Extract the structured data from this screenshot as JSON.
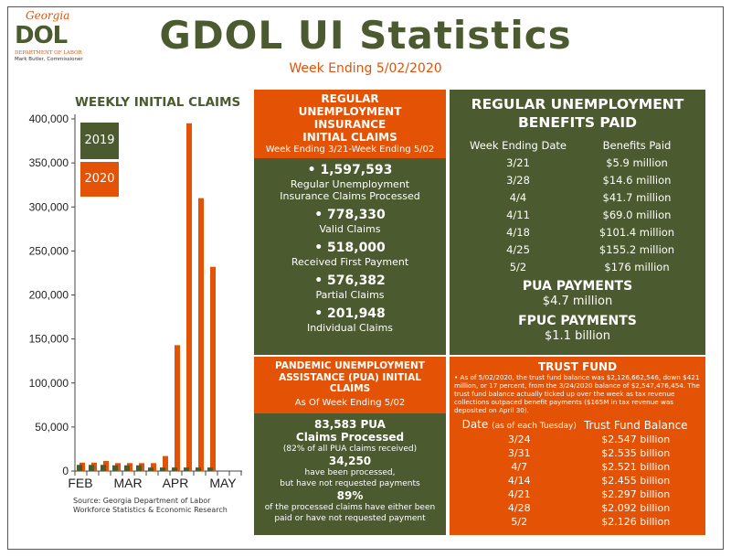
{
  "logo": {
    "script": "Georgia",
    "main": "DOL",
    "dept": "DEPARTMENT OF LABOR",
    "commissioner": "Mark Butler, Commissioner"
  },
  "header": {
    "title": "GDOL UI Statistics",
    "subtitle": "Week Ending 5/02/2020"
  },
  "colors": {
    "green": "#4b5a2f",
    "orange": "#e35205"
  },
  "chart_data": {
    "type": "bar",
    "title": "WEEKLY INITIAL CLAIMS",
    "ylim": [
      0,
      400000
    ],
    "yticks": [
      "0",
      "50,000",
      "100,000",
      "150,000",
      "200,000",
      "250,000",
      "300,000",
      "350,000",
      "400,000"
    ],
    "xtick_labels": [
      "FEB",
      "MAR",
      "APR",
      "MAY"
    ],
    "series": [
      {
        "name": "2019",
        "color": "#4b5a2f",
        "values": [
          7000,
          7000,
          7000,
          6500,
          6500,
          6500,
          4000,
          4000,
          4000,
          4000,
          4000,
          4000
        ]
      },
      {
        "name": "2020",
        "color": "#e35205",
        "values": [
          9500,
          9500,
          11500,
          9000,
          9000,
          9000,
          9000,
          17000,
          143000,
          395000,
          310000,
          232000
        ]
      }
    ],
    "source": [
      "Source:  Georgia Department of Labor",
      "Workforce Statistics & Economic Research"
    ]
  },
  "regular": {
    "heading": "REGULAR UNEMPLOYMENT INSURANCE INITIAL CLAIMS",
    "period": "Week Ending 3/21-Week Ending 5/02",
    "stats": [
      {
        "value": "• 1,597,593",
        "label": "Regular Unemployment Insurance Claims Processed"
      },
      {
        "value": "• 778,330",
        "label": "Valid Claims"
      },
      {
        "value": "• 518,000",
        "label": "Received First Payment"
      },
      {
        "value": "• 576,382",
        "label": "Partial Claims"
      },
      {
        "value": "• 201,948",
        "label": "Individual Claims"
      }
    ]
  },
  "pua": {
    "heading": "PANDEMIC UNEMPLOYMENT ASSISTANCE (PUA) INITIAL CLAIMS",
    "period": "As Of Week Ending 5/02",
    "l1": "83,583 PUA",
    "l2": "Claims Processed",
    "l3": "(82% of all PUA claims received)",
    "l4": "34,250",
    "l5": "have been processed,",
    "l6": "but have not requested payments",
    "l7": "89%",
    "l8": "of the processed claims have either been",
    "l9": "paid or have not requested payment"
  },
  "benefits": {
    "heading": "REGULAR UNEMPLOYMENT BENEFITS PAID",
    "col1": "Week Ending Date",
    "col2": "Benefits Paid",
    "rows": [
      [
        "3/21",
        "$5.9 million"
      ],
      [
        "3/28",
        "$14.6 million"
      ],
      [
        "4/4",
        "$41.7 million"
      ],
      [
        "4/11",
        "$69.0 million"
      ],
      [
        "4/18",
        "$101.4 million"
      ],
      [
        "4/25",
        "$155.2 million"
      ],
      [
        "5/2",
        "$176 million"
      ]
    ],
    "pua_heading": "PUA PAYMENTS",
    "pua_value": "$4.7 million",
    "fpuc_heading": "FPUC PAYMENTS",
    "fpuc_value": "$1.1 billion"
  },
  "trust": {
    "heading": "TRUST FUND",
    "text": "• As of 5/02/2020, the trust fund balance was $2,126,662,546, down $421 million, or 17 percent, from the 3/24/2020 balance of $2,547,476,454. The trust fund balance actually ticked up over the week as tax revenue collections outpaced benefit payments ($165M in tax revenue was deposited on April 30).",
    "col1": "Date",
    "col1_note": "(as of each Tuesday)",
    "col2": "Trust Fund Balance",
    "rows": [
      [
        "3/24",
        "$2.547 billion"
      ],
      [
        "3/31",
        "$2.535 billion"
      ],
      [
        "4/7",
        "$2.521 billion"
      ],
      [
        "4/14",
        "$2.455 billion"
      ],
      [
        "4/21",
        "$2.297 billion"
      ],
      [
        "4/28",
        "$2.092 billion"
      ],
      [
        "5/2",
        "$2.126 billion"
      ]
    ]
  }
}
